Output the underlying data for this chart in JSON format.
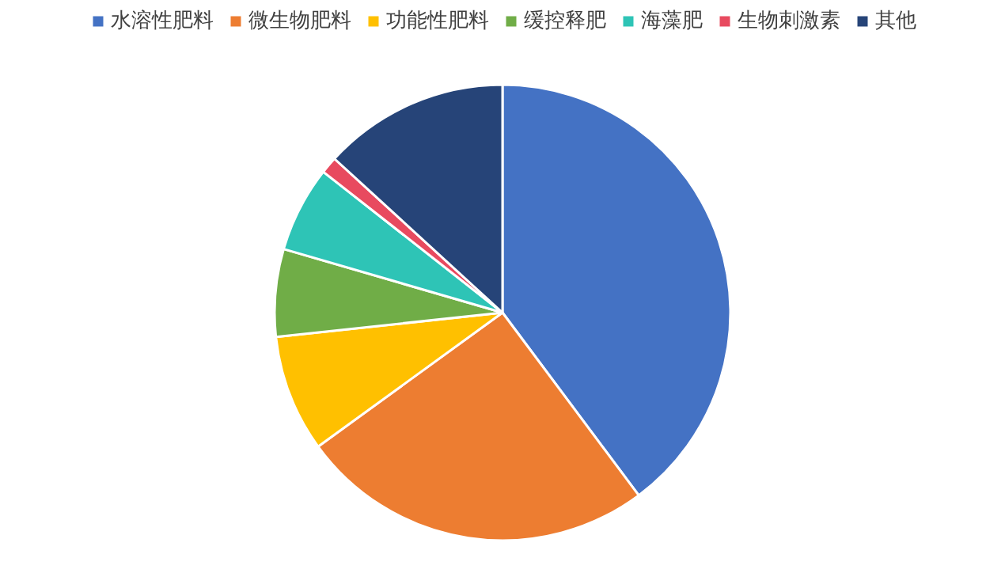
{
  "chart_data": {
    "type": "pie",
    "categories": [
      "水溶性肥料",
      "微生物肥料",
      "功能性肥料",
      "缓控释肥",
      "海藻肥",
      "生物刺激素",
      "其他"
    ],
    "values": [
      39.8,
      25.2,
      8.3,
      6.2,
      6.1,
      1.2,
      13.2
    ],
    "colors": [
      "#4472c4",
      "#ed7d31",
      "#ffc000",
      "#70ad47",
      "#2ec4b6",
      "#e84a5f",
      "#264478"
    ],
    "legend": "top"
  }
}
